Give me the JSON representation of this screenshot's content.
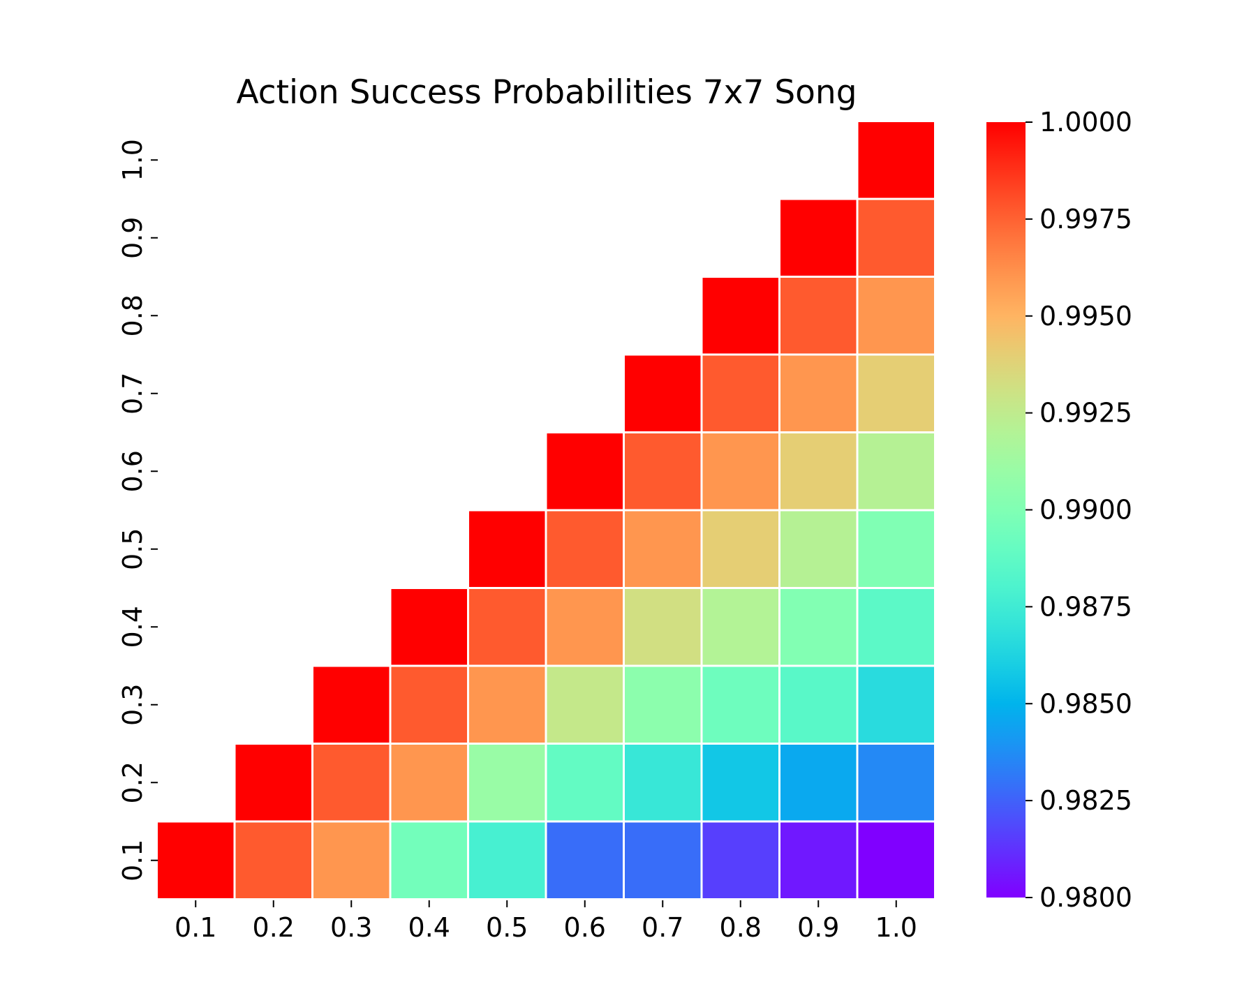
{
  "chart_data": {
    "type": "heatmap",
    "title": "Action Success Probabilities 7x7 Song",
    "x_ticks": [
      "0.1",
      "0.2",
      "0.3",
      "0.4",
      "0.5",
      "0.6",
      "0.7",
      "0.8",
      "0.9",
      "1.0"
    ],
    "y_ticks": [
      "0.1",
      "0.2",
      "0.3",
      "0.4",
      "0.5",
      "0.6",
      "0.7",
      "0.8",
      "0.9",
      "1.0"
    ],
    "mask": "upper-left triangle (y > x) empty",
    "colormap": "rainbow",
    "vmin": 0.98,
    "vmax": 1.0,
    "colorbar_ticks": [
      "0.9800",
      "0.9825",
      "0.9850",
      "0.9875",
      "0.9900",
      "0.9925",
      "0.9950",
      "0.9975",
      "1.0000"
    ],
    "colorbar_values": [
      0.98,
      0.9825,
      0.985,
      0.9875,
      0.99,
      0.9925,
      0.995,
      0.9975,
      1.0
    ],
    "rows_y_ascending": [
      [
        1.0,
        0.9977,
        0.996,
        0.9895,
        0.9878,
        0.9828,
        0.9828,
        0.9816,
        0.9806,
        0.98
      ],
      [
        null,
        1.0,
        0.9977,
        0.996,
        0.991,
        0.9889,
        0.9872,
        0.9857,
        0.9846,
        0.9836
      ],
      [
        null,
        null,
        1.0,
        0.9977,
        0.996,
        0.9927,
        0.9905,
        0.9893,
        0.9885,
        0.9866
      ],
      [
        null,
        null,
        null,
        1.0,
        0.9977,
        0.996,
        0.9932,
        0.992,
        0.9901,
        0.9886
      ],
      [
        null,
        null,
        null,
        null,
        1.0,
        0.9977,
        0.996,
        0.994,
        0.9921,
        0.99
      ],
      [
        null,
        null,
        null,
        null,
        null,
        1.0,
        0.9977,
        0.996,
        0.994,
        0.9921
      ],
      [
        null,
        null,
        null,
        null,
        null,
        null,
        1.0,
        0.9977,
        0.996,
        0.994
      ],
      [
        null,
        null,
        null,
        null,
        null,
        null,
        null,
        1.0,
        0.9977,
        0.996
      ],
      [
        null,
        null,
        null,
        null,
        null,
        null,
        null,
        null,
        1.0,
        0.9977
      ],
      [
        null,
        null,
        null,
        null,
        null,
        null,
        null,
        null,
        null,
        1.0
      ]
    ]
  }
}
